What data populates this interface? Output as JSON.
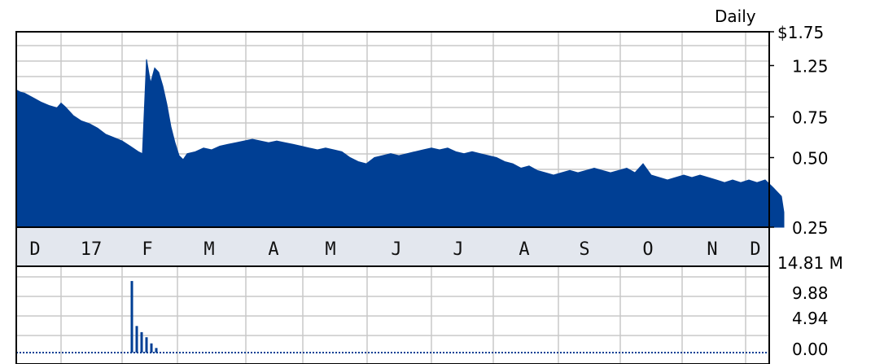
{
  "chart_data": [
    {
      "type": "area",
      "panel": "price",
      "period_label": "Daily",
      "y_scale": "log",
      "ylim": [
        0.25,
        1.75
      ],
      "y_ticks": [
        {
          "value": 1.75,
          "label": "$1.75"
        },
        {
          "value": 1.25,
          "label": "1.25"
        },
        {
          "value": 0.75,
          "label": "0.75"
        },
        {
          "value": 0.5,
          "label": "0.50"
        },
        {
          "value": 0.25,
          "label": "0.25"
        }
      ],
      "x_months": [
        "D",
        "17",
        "F",
        "M",
        "A",
        "M",
        "J",
        "J",
        "A",
        "S",
        "O",
        "N",
        "D"
      ],
      "grid": true,
      "fill_color": "#003f94",
      "x": [
        0,
        5,
        10,
        20,
        30,
        40,
        50,
        55,
        60,
        70,
        80,
        90,
        100,
        110,
        120,
        130,
        140,
        150,
        155,
        160,
        165,
        170,
        175,
        180,
        185,
        190,
        195,
        200,
        205,
        210,
        220,
        230,
        240,
        250,
        260,
        270,
        280,
        290,
        300,
        310,
        320,
        330,
        340,
        350,
        360,
        370,
        380,
        390,
        400,
        410,
        420,
        430,
        440,
        450,
        460,
        470,
        480,
        490,
        500,
        510,
        520,
        530,
        540,
        550,
        560,
        570,
        580,
        590,
        600,
        610,
        620,
        630,
        640,
        650,
        660,
        670,
        680,
        690,
        700,
        710,
        720,
        730,
        740,
        750,
        760,
        770,
        780,
        790,
        800,
        810,
        820,
        830,
        840,
        850,
        860,
        870,
        880,
        890,
        900,
        910,
        920,
        930,
        940,
        943
      ],
      "values": [
        0.98,
        0.96,
        0.95,
        0.91,
        0.87,
        0.84,
        0.82,
        0.86,
        0.83,
        0.76,
        0.72,
        0.7,
        0.67,
        0.63,
        0.61,
        0.59,
        0.56,
        0.53,
        0.52,
        1.33,
        1.05,
        1.22,
        1.17,
        1.02,
        0.85,
        0.68,
        0.58,
        0.51,
        0.49,
        0.52,
        0.53,
        0.55,
        0.54,
        0.56,
        0.57,
        0.58,
        0.59,
        0.6,
        0.59,
        0.58,
        0.59,
        0.58,
        0.57,
        0.56,
        0.55,
        0.54,
        0.55,
        0.54,
        0.53,
        0.5,
        0.48,
        0.47,
        0.5,
        0.51,
        0.52,
        0.51,
        0.52,
        0.53,
        0.54,
        0.55,
        0.54,
        0.55,
        0.53,
        0.52,
        0.53,
        0.52,
        0.51,
        0.5,
        0.48,
        0.47,
        0.45,
        0.46,
        0.44,
        0.43,
        0.42,
        0.43,
        0.44,
        0.43,
        0.44,
        0.45,
        0.44,
        0.43,
        0.44,
        0.45,
        0.43,
        0.47,
        0.42,
        0.41,
        0.4,
        0.41,
        0.42,
        0.41,
        0.42,
        0.41,
        0.4,
        0.39,
        0.4,
        0.39,
        0.4,
        0.39,
        0.4,
        0.37,
        0.34,
        0.29
      ]
    },
    {
      "type": "bar",
      "panel": "volume",
      "unit": "M",
      "ylim": [
        0,
        14.81
      ],
      "y_ticks": [
        {
          "value": 14.81,
          "label": "14.81 M"
        },
        {
          "value": 9.88,
          "label": "9.88"
        },
        {
          "value": 4.94,
          "label": "4.94"
        },
        {
          "value": 0.0,
          "label": "0.00"
        }
      ],
      "grid": true,
      "bar_color": "#003f94",
      "x": [
        142,
        148,
        154,
        160,
        166,
        172
      ],
      "values": [
        14.0,
        5.2,
        4.0,
        3.0,
        1.8,
        0.9
      ]
    }
  ]
}
